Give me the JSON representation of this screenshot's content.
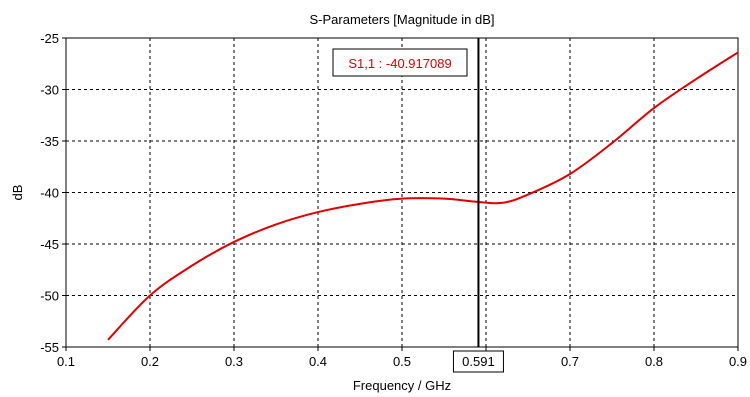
{
  "chart_data": {
    "type": "line",
    "title": "S-Parameters [Magnitude in dB]",
    "xlabel": "Frequency / GHz",
    "ylabel": "dB",
    "xlim": [
      0.1,
      0.9
    ],
    "ylim": [
      -55,
      -25
    ],
    "x_ticks": [
      0.1,
      0.2,
      0.3,
      0.4,
      0.5,
      0.6,
      0.7,
      0.8,
      0.9
    ],
    "x_tick_labels": [
      "0.1",
      "0.2",
      "0.3",
      "0.4",
      "0.5",
      "",
      "0.7",
      "0.8",
      "0.9"
    ],
    "y_ticks": [
      -25,
      -30,
      -35,
      -40,
      -45,
      -50,
      -55
    ],
    "y_tick_labels": [
      "-25",
      "-30",
      "-35",
      "-40",
      "-45",
      "-50",
      "-55"
    ],
    "grid": true,
    "series": [
      {
        "color": "#e00000",
        "x": [
          0.15,
          0.2,
          0.25,
          0.3,
          0.35,
          0.4,
          0.45,
          0.5,
          0.55,
          0.591,
          0.62,
          0.65,
          0.7,
          0.75,
          0.8,
          0.85,
          0.9
        ],
        "y": [
          -54.3,
          -50.0,
          -47.1,
          -44.8,
          -43.1,
          -41.9,
          -41.1,
          -40.6,
          -40.6,
          -40.917,
          -41.0,
          -40.2,
          -38.2,
          -35.2,
          -31.8,
          -29.0,
          -26.4
        ]
      }
    ],
    "marker": {
      "x": 0.591,
      "x_label": "0.591",
      "label": "S1,1 : -40.917089"
    }
  }
}
